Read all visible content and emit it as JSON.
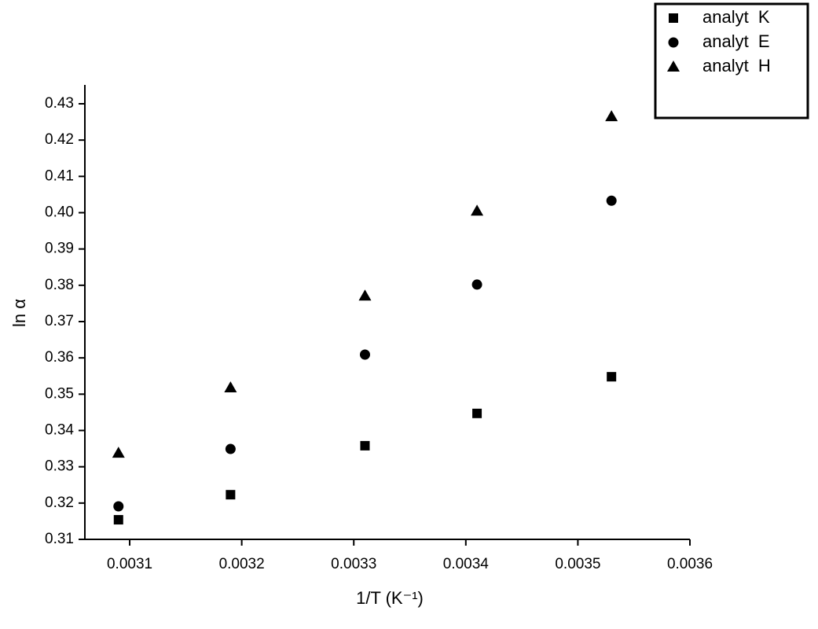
{
  "chart_data": {
    "type": "scatter",
    "x_label": "1/T (K⁻¹)",
    "y_label": "ln α",
    "xlim": [
      0.00306,
      0.0036
    ],
    "ylim": [
      0.31,
      0.4352
    ],
    "xticks": [
      0.0031,
      0.0032,
      0.0033,
      0.0034,
      0.0035,
      0.0036
    ],
    "yticks": [
      0.31,
      0.32,
      0.33,
      0.34,
      0.35,
      0.36,
      0.37,
      0.38,
      0.39,
      {
        "value": 0.4,
        "label": "0.40"
      },
      0.41,
      0.42,
      0.43
    ],
    "legend": "top-right",
    "series": [
      {
        "name": "analyt  K",
        "color": "#000000",
        "marker": "square",
        "x": [
          0.00309,
          0.00319,
          0.00331,
          0.00341,
          0.00353
        ],
        "values": [
          0.3154,
          0.3223,
          0.3358,
          0.3447,
          0.3548
        ]
      },
      {
        "name": "analyt  E",
        "color": "#000000",
        "marker": "circle",
        "x": [
          0.00309,
          0.00319,
          0.00331,
          0.00341,
          0.00353
        ],
        "values": [
          0.3191,
          0.3349,
          0.3609,
          0.3802,
          0.4033
        ]
      },
      {
        "name": "analyt  H",
        "color": "#000000",
        "marker": "triangle",
        "x": [
          0.00309,
          0.00319,
          0.00331,
          0.00341,
          0.00353
        ],
        "values": [
          0.3338,
          0.3518,
          0.3771,
          0.4005,
          0.4265
        ]
      }
    ]
  }
}
